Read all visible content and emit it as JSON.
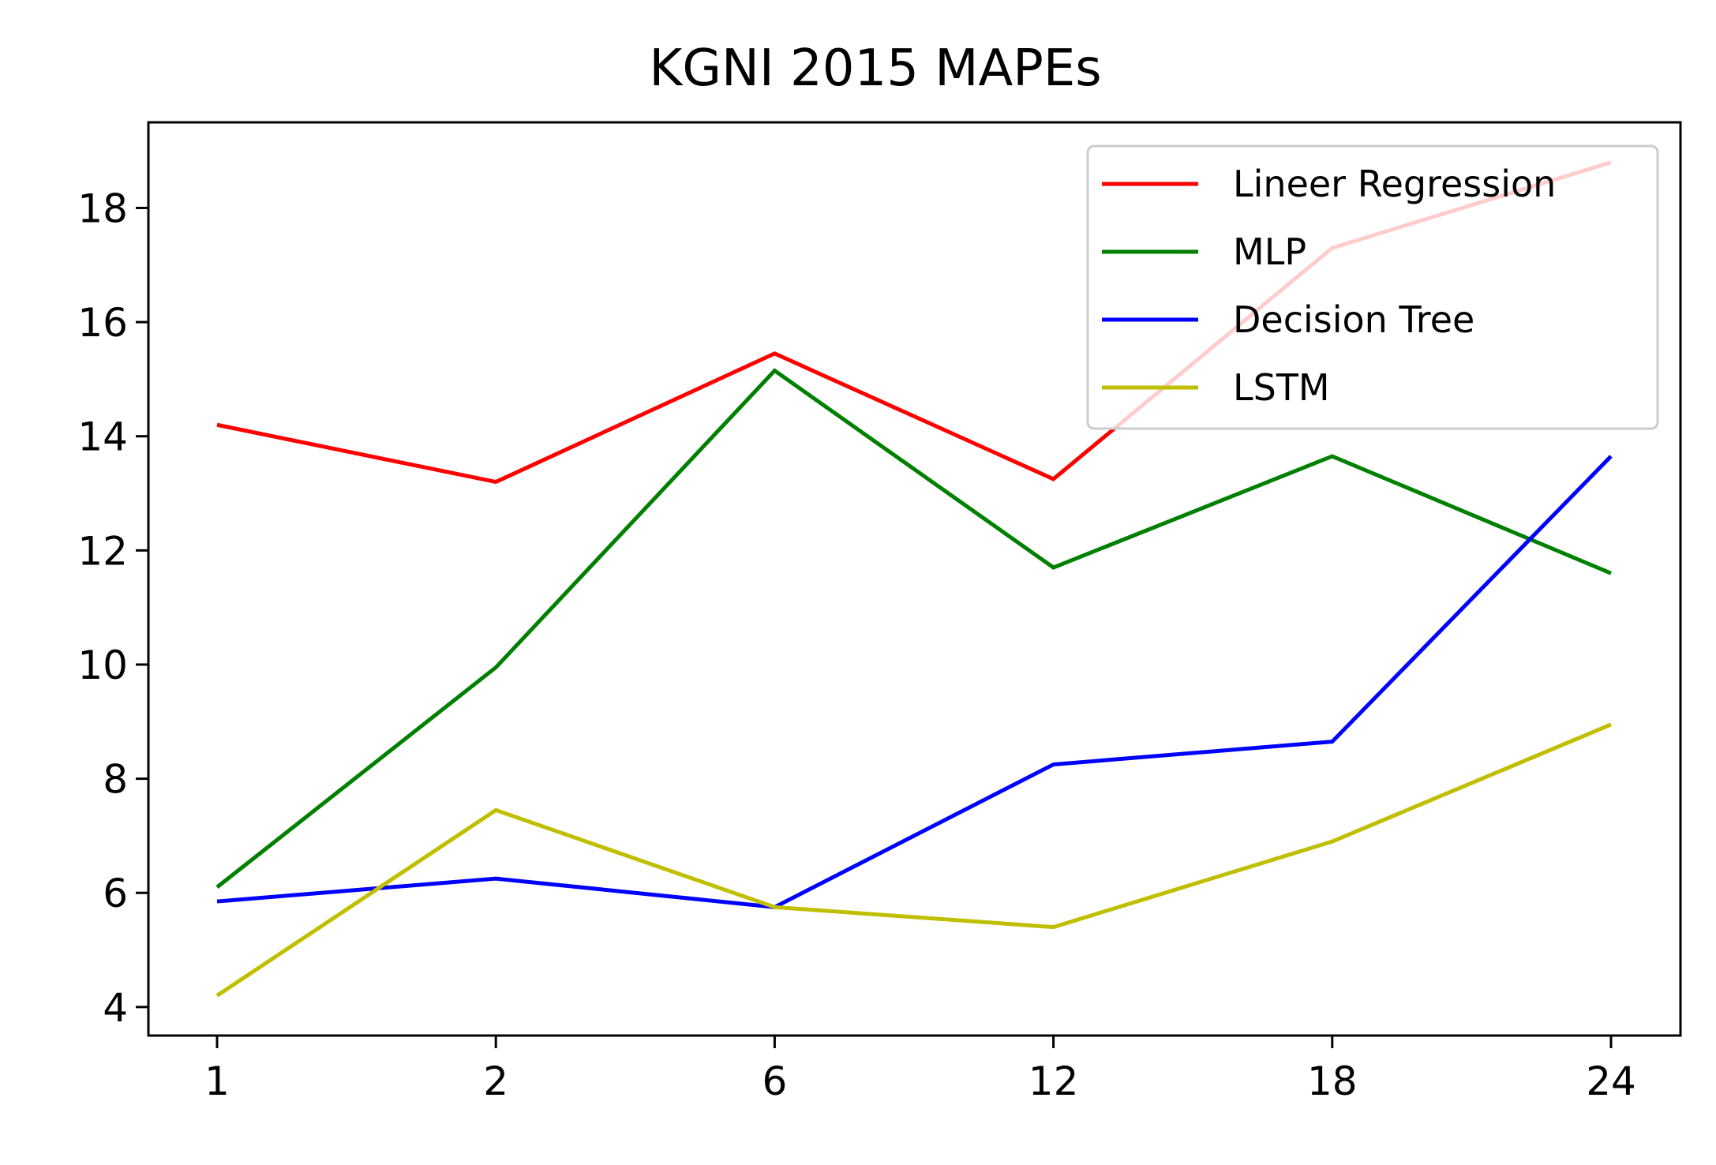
{
  "chart_data": {
    "type": "line",
    "title": "KGNI  2015 MAPEs",
    "xlabel": "",
    "ylabel": "",
    "categories": [
      "1",
      "2",
      "6",
      "12",
      "18",
      "24"
    ],
    "yticks": [
      4,
      6,
      8,
      10,
      12,
      14,
      16,
      18
    ],
    "ylim": [
      3.5,
      19.5
    ],
    "grid": false,
    "legend_position": "top-right",
    "series": [
      {
        "name": "Lineer Regression",
        "color": "#ff0000",
        "values": [
          14.2,
          13.2,
          15.45,
          13.25,
          17.3,
          18.8
        ]
      },
      {
        "name": "MLP",
        "color": "#008000",
        "values": [
          6.1,
          9.95,
          15.15,
          11.7,
          13.65,
          11.6
        ]
      },
      {
        "name": "Decision Tree",
        "color": "#0000ff",
        "values": [
          5.85,
          6.25,
          5.75,
          8.25,
          8.65,
          13.65
        ]
      },
      {
        "name": "LSTM",
        "color": "#bfbf00",
        "values": [
          4.2,
          7.45,
          5.75,
          5.4,
          6.9,
          8.95
        ]
      }
    ]
  }
}
